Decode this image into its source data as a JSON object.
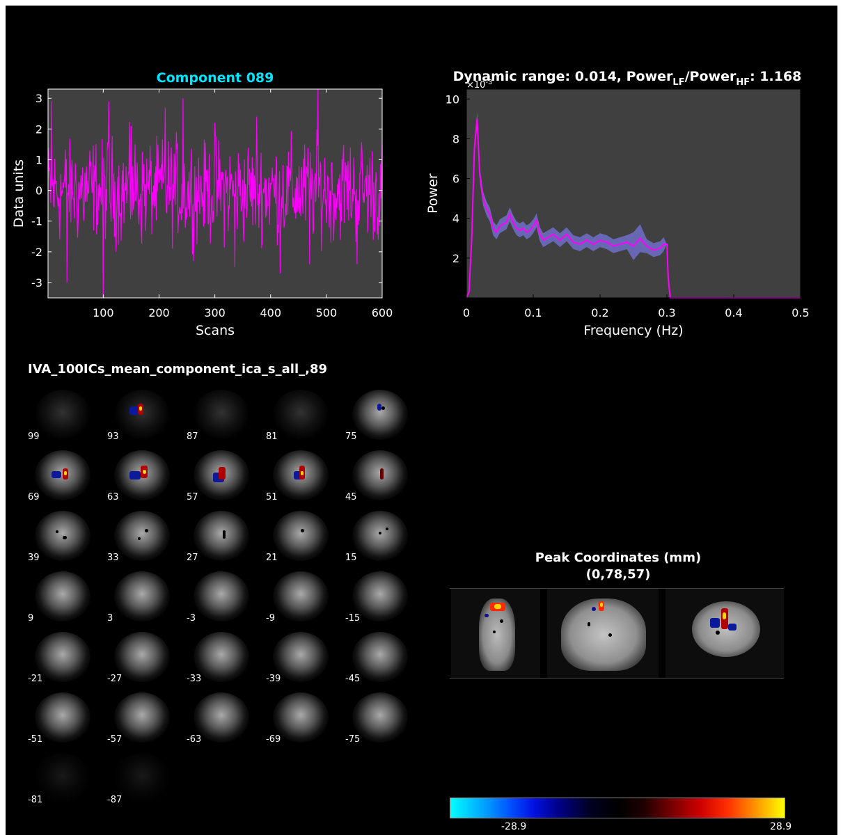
{
  "chart_data": [
    {
      "type": "line",
      "title": "Component 089",
      "title_color": "#00e5ff",
      "xlabel": "Scans",
      "ylabel": "Data units",
      "xlim": [
        1,
        600
      ],
      "ylim": [
        -3.5,
        3.3
      ],
      "xticks": [
        100,
        200,
        300,
        400,
        500,
        600
      ],
      "yticks": [
        -3,
        -2,
        -1,
        0,
        1,
        2,
        3
      ],
      "line_color": "#ff00ff",
      "background": "#404040",
      "n_points": 600,
      "notable_points": [
        {
          "x": 7,
          "y": 2.9
        },
        {
          "x": 35,
          "y": -3.0
        },
        {
          "x": 100,
          "y": -3.5
        },
        {
          "x": 110,
          "y": 2.9
        },
        {
          "x": 150,
          "y": 2.1
        },
        {
          "x": 211,
          "y": 2.7
        },
        {
          "x": 243,
          "y": 3.0
        },
        {
          "x": 300,
          "y": 2.2
        },
        {
          "x": 336,
          "y": -2.5
        },
        {
          "x": 375,
          "y": 2.4
        },
        {
          "x": 417,
          "y": -2.7
        },
        {
          "x": 470,
          "y": -2.4
        },
        {
          "x": 485,
          "y": 3.3
        },
        {
          "x": 555,
          "y": -2.4
        }
      ]
    },
    {
      "type": "line",
      "title": "Dynamic range: 0.014, Power",
      "title_sub1": "LF",
      "title_mid": "/Power",
      "title_sub2": "HF",
      "title_end": ": 1.168",
      "xlabel": "Frequency (Hz)",
      "ylabel": "Power",
      "y_exponent_label": "×10",
      "y_exponent": "-3",
      "xlim": [
        0,
        0.5
      ],
      "ylim": [
        0,
        10.5
      ],
      "xticks": [
        0,
        0.1,
        0.2,
        0.3,
        0.4,
        0.5
      ],
      "yticks": [
        2,
        4,
        6,
        8,
        10
      ],
      "line_color": "#ff00ff",
      "band_color": "#6c6cc0",
      "background": "#404040",
      "x": [
        0,
        0.004,
        0.008,
        0.012,
        0.016,
        0.02,
        0.025,
        0.03,
        0.035,
        0.04,
        0.045,
        0.05,
        0.055,
        0.06,
        0.065,
        0.07,
        0.075,
        0.08,
        0.085,
        0.09,
        0.095,
        0.1,
        0.105,
        0.11,
        0.115,
        0.12,
        0.13,
        0.14,
        0.15,
        0.16,
        0.17,
        0.18,
        0.19,
        0.2,
        0.21,
        0.22,
        0.23,
        0.24,
        0.25,
        0.26,
        0.27,
        0.28,
        0.29,
        0.295,
        0.3,
        0.302,
        0.305,
        0.35,
        0.4,
        0.45,
        0.5
      ],
      "y": [
        0,
        0.3,
        3.0,
        7.5,
        9.0,
        6.2,
        5.0,
        4.5,
        4.2,
        3.5,
        3.3,
        3.6,
        3.7,
        3.8,
        4.2,
        3.8,
        3.5,
        3.4,
        3.5,
        3.3,
        3.4,
        3.6,
        3.9,
        3.2,
        2.9,
        3.0,
        3.2,
        2.9,
        3.2,
        2.8,
        2.7,
        2.9,
        2.7,
        2.9,
        2.8,
        2.6,
        2.7,
        2.8,
        2.6,
        3.0,
        2.6,
        2.4,
        2.5,
        2.7,
        2.7,
        1.0,
        0,
        0,
        0,
        0,
        0
      ]
    }
  ],
  "montage": {
    "title": "IVA_100ICs_mean_component_ica_s_all_,89",
    "slice_labels": [
      "99",
      "93",
      "87",
      "81",
      "75",
      "69",
      "63",
      "57",
      "51",
      "45",
      "39",
      "33",
      "27",
      "21",
      "15",
      "9",
      "3",
      "-3",
      "-9",
      "-15",
      "-21",
      "-27",
      "-33",
      "-39",
      "-45",
      "-51",
      "-57",
      "-63",
      "-69",
      "-75",
      "-81",
      "-87"
    ]
  },
  "peak": {
    "title": "Peak Coordinates (mm)",
    "coords": "(0,78,57)"
  },
  "colorbar": {
    "min_label": "-28.9",
    "max_label": "28.9"
  }
}
